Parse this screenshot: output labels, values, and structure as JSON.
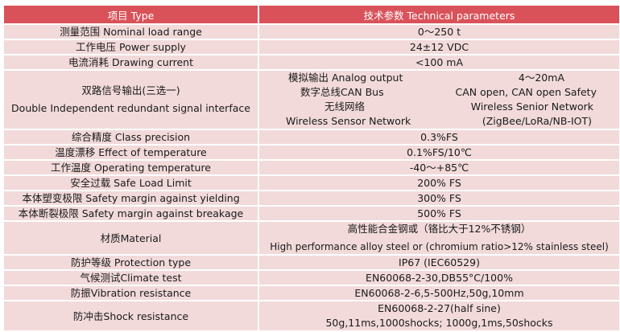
{
  "header": {
    "col1": "项目   Type",
    "col2": "技术参数   Technical parameters"
  },
  "rows": [
    {
      "type": "测量范围  Nominal load range",
      "value": "0～250 t"
    },
    {
      "type": "工作电压  Power supply",
      "value": "24±12 VDC"
    },
    {
      "type": "电流消耗  Drawing current",
      "value": "<100 mA"
    },
    {
      "type_cn": "双路信号输出(三选一)",
      "type_en": "Double Independent redundant signal interface",
      "subs": [
        {
          "a": "模拟输出 Analog output",
          "b": "4～20mA"
        },
        {
          "a": "数字总线CAN Bus",
          "b": "CAN open, CAN open Safety"
        },
        {
          "a": "无线网络",
          "b": "Wireless Senior Network"
        },
        {
          "a": "Wireless Sensor Network",
          "b": "(ZigBee/LoRa/NB-IOT)"
        }
      ]
    },
    {
      "type": "综合精度  Class precision",
      "value": "0.3%FS"
    },
    {
      "type": "温度漂移  Effect of temperature",
      "value": "0.1%FS/10℃"
    },
    {
      "type": "工作温度  Operating temperature",
      "value": "-40～+85℃"
    },
    {
      "type": "安全过载  Safe Load Limit",
      "value": "200% FS"
    },
    {
      "type": "本体塑变极限   Safety margin against yielding",
      "value": "300% FS"
    },
    {
      "type": "本体断裂极限   Safety margin against breakage",
      "value": "500% FS"
    },
    {
      "type": "材质Material",
      "value1": "高性能合金钢或（铬比大于12%不锈钢）",
      "value2": "High performance alloy steel or (chromium ratio>12% stainless steel)"
    },
    {
      "type": "防护等级  Protection type",
      "value": "IP67   (IEC60529)"
    },
    {
      "type": "气候测试Climate test",
      "value": "EN60068-2-30,DB55°C/100%"
    },
    {
      "type": "防振Vibration resistance",
      "value": "EN60068-2-6,5-500Hz,50g,10mm"
    },
    {
      "type": "防冲击Shock resistance",
      "value1": "EN60068-2-27(half sine)",
      "value2": "50g,11ms,1000shocks; 1000g,1ms,50shocks"
    }
  ]
}
